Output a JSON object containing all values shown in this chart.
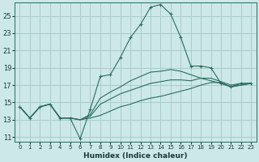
{
  "xlabel": "Humidex (Indice chaleur)",
  "background_color": "#cce8e8",
  "grid_color": "#aacccc",
  "line_color": "#2a6e5e",
  "xlim": [
    -0.5,
    23.5
  ],
  "ylim": [
    10.5,
    26.5
  ],
  "xticks": [
    0,
    1,
    2,
    3,
    4,
    5,
    6,
    7,
    8,
    9,
    10,
    11,
    12,
    13,
    14,
    15,
    16,
    17,
    18,
    19,
    20,
    21,
    22,
    23
  ],
  "yticks": [
    11,
    13,
    15,
    17,
    19,
    21,
    23,
    25
  ],
  "line1_x": [
    0,
    1,
    2,
    3,
    4,
    5,
    6,
    7,
    8,
    9,
    10,
    11,
    12,
    13,
    14,
    15,
    16,
    17,
    18,
    19,
    20,
    21,
    22,
    23
  ],
  "line1_y": [
    14.5,
    13.2,
    14.5,
    14.8,
    13.2,
    13.2,
    10.8,
    14.2,
    18.0,
    18.2,
    20.2,
    22.5,
    24.0,
    26.0,
    26.3,
    25.2,
    22.5,
    19.2,
    19.2,
    19.0,
    17.2,
    16.8,
    17.2,
    17.2
  ],
  "line2_x": [
    0,
    1,
    2,
    3,
    4,
    5,
    6,
    7,
    8,
    9,
    10,
    11,
    12,
    13,
    14,
    15,
    16,
    17,
    18,
    19,
    20,
    21,
    22,
    23
  ],
  "line2_y": [
    14.5,
    13.2,
    14.5,
    14.8,
    13.2,
    13.2,
    13.0,
    13.2,
    13.5,
    14.0,
    14.5,
    14.8,
    15.2,
    15.5,
    15.7,
    16.0,
    16.3,
    16.6,
    17.0,
    17.3,
    17.3,
    16.8,
    17.0,
    17.2
  ],
  "line3_x": [
    0,
    1,
    2,
    3,
    4,
    5,
    6,
    7,
    8,
    9,
    10,
    11,
    12,
    13,
    14,
    15,
    16,
    17,
    18,
    19,
    20,
    21,
    22,
    23
  ],
  "line3_y": [
    14.5,
    13.2,
    14.5,
    14.8,
    13.2,
    13.2,
    13.0,
    13.4,
    14.8,
    15.4,
    16.0,
    16.4,
    16.8,
    17.2,
    17.4,
    17.6,
    17.6,
    17.5,
    17.8,
    17.8,
    17.4,
    17.0,
    17.2,
    17.2
  ],
  "line4_x": [
    0,
    1,
    2,
    3,
    4,
    5,
    6,
    7,
    8,
    9,
    10,
    11,
    12,
    13,
    14,
    15,
    16,
    17,
    18,
    19,
    20,
    21,
    22,
    23
  ],
  "line4_y": [
    14.5,
    13.2,
    14.5,
    14.8,
    13.2,
    13.2,
    13.0,
    13.6,
    15.5,
    16.2,
    16.8,
    17.5,
    18.0,
    18.5,
    18.6,
    18.8,
    18.6,
    18.2,
    17.8,
    17.5,
    17.2,
    16.8,
    17.0,
    17.2
  ]
}
